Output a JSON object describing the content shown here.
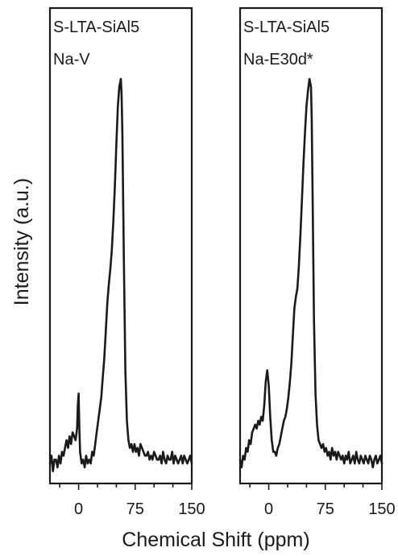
{
  "chart_data": {
    "type": "line",
    "xlabel": "Chemical Shift (ppm)",
    "ylabel": "Intensity (a.u.)",
    "xlim": [
      -38,
      150
    ],
    "x_ticks": [
      0,
      75,
      150
    ],
    "x_tick_labels": [
      "0",
      "75",
      "150"
    ],
    "minor_x_ticks": [
      -25,
      25,
      50,
      100,
      125
    ],
    "ylim": [
      0,
      1.05
    ],
    "grid": false,
    "legend": "none",
    "panels": [
      {
        "label_line1": "S-LTA-SiAl5",
        "label_line2": "Na-V",
        "series": [
          {
            "x": [
              -38,
              -36,
              -34,
              -32,
              -30,
              -28,
              -26,
              -24,
              -22,
              -20,
              -18,
              -16,
              -14,
              -12,
              -10,
              -8,
              -6,
              -4,
              -2,
              -1,
              0,
              1,
              2,
              4,
              6,
              8,
              10,
              12,
              14,
              16,
              18,
              20,
              22,
              24,
              26,
              28,
              30,
              32,
              34,
              36,
              38,
              40,
              42,
              44,
              46,
              48,
              50,
              52,
              54,
              56,
              57,
              58,
              60,
              62,
              64,
              66,
              68,
              70,
              72,
              74,
              76,
              78,
              80,
              82,
              84,
              86,
              88,
              90,
              92,
              94,
              96,
              98,
              100,
              102,
              104,
              106,
              108,
              110,
              112,
              114,
              116,
              118,
              120,
              122,
              124,
              126,
              128,
              130,
              132,
              134,
              136,
              138,
              140,
              142,
              144,
              146,
              148,
              150
            ],
            "y": [
              0.01,
              0.03,
              -0.01,
              0.02,
              0.02,
              0.0,
              0.03,
              0.01,
              0.04,
              0.03,
              0.05,
              0.07,
              0.05,
              0.08,
              0.06,
              0.09,
              0.08,
              0.07,
              0.1,
              0.16,
              0.19,
              0.1,
              0.04,
              0.01,
              0.02,
              0.0,
              0.03,
              0.01,
              0.02,
              0.01,
              0.04,
              0.03,
              0.06,
              0.09,
              0.12,
              0.15,
              0.18,
              0.23,
              0.28,
              0.35,
              0.42,
              0.47,
              0.51,
              0.56,
              0.63,
              0.72,
              0.83,
              0.93,
              0.98,
              1.0,
              0.96,
              0.86,
              0.54,
              0.25,
              0.12,
              0.07,
              0.05,
              0.06,
              0.04,
              0.06,
              0.04,
              0.05,
              0.03,
              0.06,
              0.05,
              0.04,
              0.03,
              0.03,
              0.04,
              0.02,
              0.03,
              0.02,
              0.04,
              0.03,
              0.02,
              0.02,
              0.03,
              0.01,
              0.04,
              0.02,
              0.01,
              0.03,
              0.02,
              0.02,
              0.04,
              0.01,
              0.03,
              0.02,
              0.01,
              0.02,
              0.03,
              0.01,
              0.03,
              0.02,
              0.01,
              0.02,
              0.03,
              0.01
            ]
          }
        ]
      },
      {
        "label_line1": "S-LTA-SiAl5",
        "label_line2": "Na-E30d*",
        "series": [
          {
            "x": [
              -38,
              -36,
              -34,
              -32,
              -30,
              -28,
              -26,
              -24,
              -22,
              -20,
              -18,
              -16,
              -14,
              -12,
              -10,
              -8,
              -6,
              -4,
              -2,
              0,
              1,
              2,
              4,
              6,
              8,
              10,
              12,
              14,
              16,
              18,
              20,
              22,
              24,
              26,
              28,
              30,
              32,
              34,
              36,
              38,
              40,
              42,
              44,
              46,
              48,
              50,
              52,
              54,
              56,
              57,
              58,
              60,
              62,
              64,
              66,
              68,
              70,
              72,
              74,
              76,
              78,
              80,
              82,
              84,
              86,
              88,
              90,
              92,
              94,
              96,
              98,
              100,
              102,
              104,
              106,
              108,
              110,
              112,
              114,
              116,
              118,
              120,
              122,
              124,
              126,
              128,
              130,
              132,
              134,
              136,
              138,
              140,
              142,
              144,
              146,
              148,
              150
            ],
            "y": [
              0.02,
              0.0,
              0.03,
              0.02,
              0.05,
              0.04,
              0.07,
              0.06,
              0.09,
              0.1,
              0.11,
              0.1,
              0.12,
              0.11,
              0.13,
              0.12,
              0.16,
              0.22,
              0.25,
              0.21,
              0.17,
              0.13,
              0.07,
              0.04,
              0.04,
              0.03,
              0.05,
              0.06,
              0.08,
              0.1,
              0.12,
              0.13,
              0.15,
              0.18,
              0.22,
              0.27,
              0.34,
              0.41,
              0.44,
              0.46,
              0.52,
              0.6,
              0.69,
              0.78,
              0.86,
              0.93,
              0.97,
              1.0,
              0.98,
              0.9,
              0.72,
              0.38,
              0.19,
              0.11,
              0.07,
              0.06,
              0.05,
              0.06,
              0.04,
              0.05,
              0.03,
              0.04,
              0.02,
              0.05,
              0.03,
              0.04,
              0.02,
              0.04,
              0.03,
              0.02,
              0.03,
              0.01,
              0.03,
              0.02,
              0.04,
              0.01,
              0.02,
              0.03,
              0.01,
              0.04,
              0.02,
              0.01,
              0.03,
              0.02,
              0.01,
              0.03,
              0.02,
              0.01,
              0.03,
              0.02,
              0.0,
              0.02,
              0.03,
              0.01,
              0.02,
              0.03,
              0.01
            ]
          }
        ]
      }
    ]
  }
}
